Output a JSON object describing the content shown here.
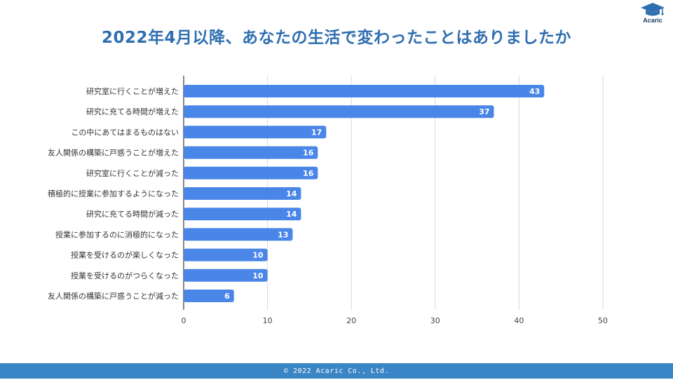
{
  "header": {
    "title": "2022年4月以降、あなたの生活で変わったことはありましたか",
    "logo_text": "Acaric"
  },
  "footer": {
    "copyright": "© 2022 Acaric Co., Ltd."
  },
  "colors": {
    "bar": "#4a86e8",
    "title": "#2f6fb0",
    "footer": "#3a85c6"
  },
  "chart_data": {
    "type": "bar",
    "orientation": "horizontal",
    "title": "",
    "xlabel": "",
    "ylabel": "",
    "xlim": [
      0,
      50
    ],
    "ticks": [
      0,
      10,
      20,
      30,
      40,
      50
    ],
    "grid": true,
    "categories": [
      "研究室に行くことが増えた",
      "研究に充てる時間が増えた",
      "この中にあてはまるものはない",
      "友人関係の構築に戸惑うことが増えた",
      "研究室に行くことが減った",
      "積極的に授業に参加するようになった",
      "研究に充てる時間が減った",
      "授業に参加するのに消極的になった",
      "授業を受けるのが楽しくなった",
      "授業を受けるのがつらくなった",
      "友人関係の構築に戸惑うことが減った"
    ],
    "values": [
      43,
      37,
      17,
      16,
      16,
      14,
      14,
      13,
      10,
      10,
      6
    ]
  }
}
